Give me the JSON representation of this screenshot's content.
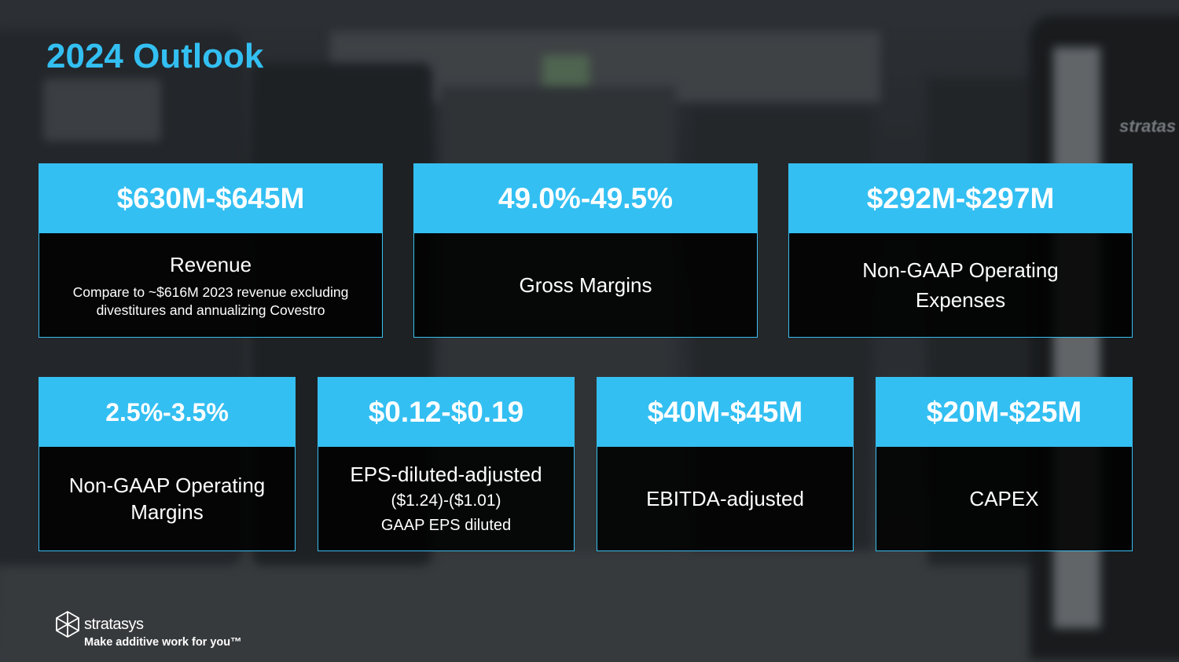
{
  "slide": {
    "title": "2024 Outlook"
  },
  "cards": [
    {
      "value": "$630M-$645M",
      "label": "Revenue",
      "note": "Compare to ~$616M 2023 revenue excluding divestitures and annualizing Covestro"
    },
    {
      "value": "49.0%-49.5%",
      "label": "Gross Margins"
    },
    {
      "value": "$292M-$297M",
      "label": "Non-GAAP Operating Expenses"
    },
    {
      "value": "2.5%-3.5%",
      "label": "Non-GAAP Operating Margins"
    },
    {
      "value": "$0.12-$0.19",
      "label": "EPS-diluted-adjusted",
      "sub": "($1.24)-($1.01)",
      "sub2": "GAAP EPS diluted"
    },
    {
      "value": "$40M-$45M",
      "label": "EBITDA-adjusted"
    },
    {
      "value": "$20M-$25M",
      "label": "CAPEX"
    }
  ],
  "footer": {
    "brand": "stratasys",
    "tagline": "Make additive work for you™"
  },
  "background": {
    "printer_brand": "stratas"
  },
  "colors": {
    "accent": "#33bff2",
    "card_body": "#000000",
    "text": "#ffffff"
  }
}
